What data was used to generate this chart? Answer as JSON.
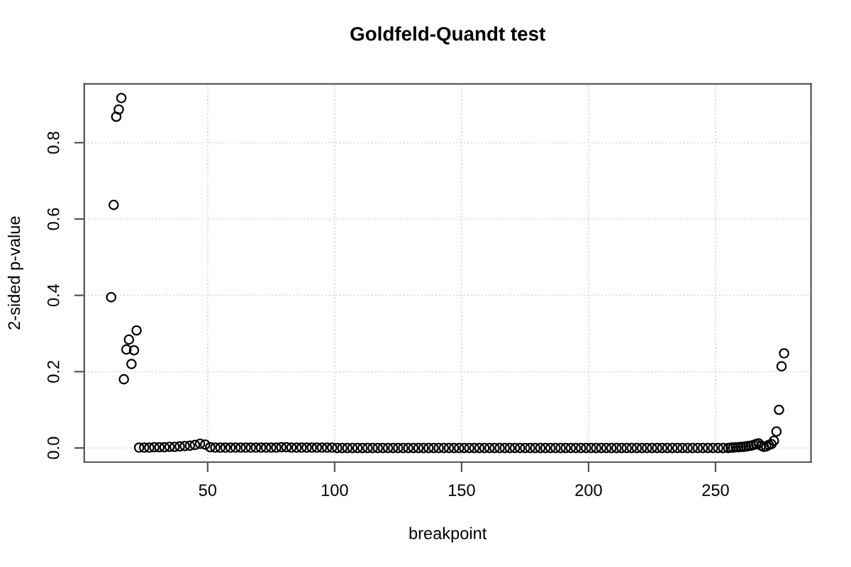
{
  "chart_data": {
    "type": "scatter",
    "title": "Goldfeld-Quandt test",
    "xlabel": "breakpoint",
    "ylabel": "2-sided p-value",
    "x": [
      12,
      13,
      14,
      15,
      16,
      17,
      18,
      19,
      20,
      21,
      22,
      23,
      25,
      27,
      29,
      31,
      33,
      35,
      37,
      39,
      41,
      43,
      45,
      47,
      49,
      51,
      53,
      55,
      57,
      59,
      61,
      63,
      65,
      67,
      69,
      71,
      73,
      75,
      77,
      79,
      81,
      83,
      85,
      87,
      89,
      91,
      93,
      95,
      97,
      99,
      101,
      103,
      105,
      107,
      109,
      111,
      113,
      115,
      117,
      119,
      121,
      123,
      125,
      127,
      129,
      131,
      133,
      135,
      137,
      139,
      141,
      143,
      145,
      147,
      149,
      151,
      153,
      155,
      157,
      159,
      161,
      163,
      165,
      167,
      169,
      171,
      173,
      175,
      177,
      179,
      181,
      183,
      185,
      187,
      189,
      191,
      193,
      195,
      197,
      199,
      201,
      203,
      205,
      207,
      209,
      211,
      213,
      215,
      217,
      219,
      221,
      223,
      225,
      227,
      229,
      231,
      233,
      235,
      237,
      239,
      241,
      243,
      245,
      247,
      249,
      251,
      253,
      255,
      256,
      257,
      258,
      259,
      260,
      261,
      262,
      263,
      264,
      265,
      266,
      267,
      268,
      269,
      270,
      271,
      272,
      273,
      274,
      275,
      276,
      277
    ],
    "values": [
      0.395,
      0.637,
      0.868,
      0.887,
      0.917,
      0.18,
      0.258,
      0.284,
      0.22,
      0.256,
      0.308,
      0.001,
      0.001,
      0.001,
      0.002,
      0.002,
      0.002,
      0.003,
      0.003,
      0.004,
      0.005,
      0.006,
      0.008,
      0.011,
      0.009,
      0.002,
      0.001,
      0.001,
      0.001,
      0.001,
      0.001,
      0.001,
      0.001,
      0.001,
      0.001,
      0.001,
      0.001,
      0.001,
      0.001,
      0.002,
      0.002,
      0.001,
      0.001,
      0.001,
      0.001,
      0.001,
      0.001,
      0.001,
      0.001,
      0.001,
      0,
      0,
      0,
      0,
      0,
      0,
      0,
      0,
      0,
      0,
      0,
      0,
      0,
      0,
      0,
      0,
      0,
      0,
      0,
      0,
      0,
      0,
      0,
      0,
      0,
      0,
      0,
      0,
      0,
      0,
      0,
      0,
      0,
      0,
      0,
      0,
      0,
      0,
      0,
      0,
      0,
      0,
      0,
      0,
      0,
      0,
      0,
      0,
      0,
      0,
      0,
      0,
      0,
      0,
      0,
      0,
      0,
      0,
      0,
      0,
      0,
      0,
      0,
      0,
      0,
      0,
      0,
      0,
      0,
      0,
      0,
      0,
      0,
      0,
      0,
      0,
      0,
      0,
      0.001,
      0.001,
      0.002,
      0.002,
      0.003,
      0.003,
      0.004,
      0.005,
      0.006,
      0.008,
      0.01,
      0.012,
      0.006,
      0.003,
      0.004,
      0.008,
      0.01,
      0.019,
      0.043,
      0.1,
      0.214,
      0.248
    ],
    "color": "#000000",
    "marker": "circle",
    "xlim": [
      1.4,
      287.6
    ],
    "ylim": [
      -0.037,
      0.954
    ],
    "xticks": [
      50,
      100,
      150,
      200,
      250
    ],
    "yticks": [
      {
        "value": 0,
        "label": "0.0"
      },
      {
        "value": 0.2,
        "label": "0.2"
      },
      {
        "value": 0.4,
        "label": "0.4"
      },
      {
        "value": 0.6,
        "label": "0.6"
      },
      {
        "value": 0.8,
        "label": "0.8"
      }
    ],
    "grid": true
  }
}
